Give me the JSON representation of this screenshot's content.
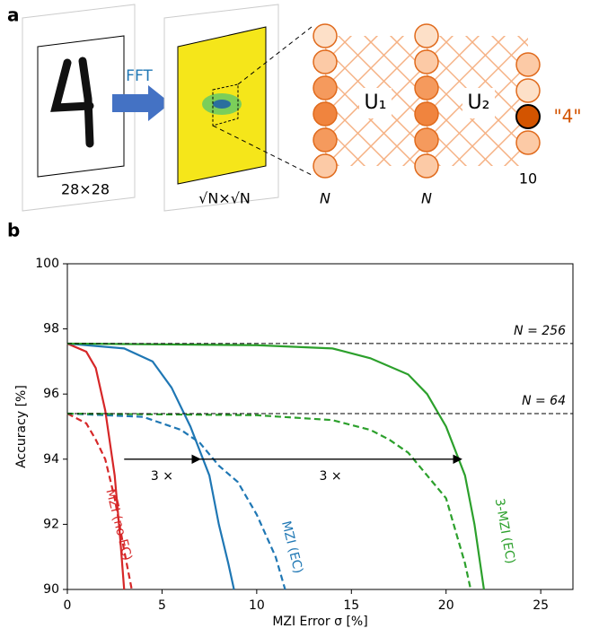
{
  "panel_a": {
    "panel_label": "a",
    "fft_label": "FFT",
    "input_size": "28×28",
    "fft_size": "√N×√N",
    "layer_labels": [
      "N",
      "N",
      "10"
    ],
    "unitary_labels": [
      "U₁",
      "U₂"
    ],
    "output_label": "\"4\""
  },
  "chart_data": {
    "type": "line",
    "panel_label": "b",
    "x_label": "MZI Error σ [%]",
    "y_label": "Accuracy [%]",
    "xlim": [
      0,
      26.7
    ],
    "ylim": [
      90,
      100
    ],
    "xticks": [
      0,
      5,
      10,
      15,
      20,
      25
    ],
    "yticks": [
      90,
      92,
      94,
      96,
      98,
      100
    ],
    "reference_lines": [
      {
        "y": 97.55,
        "label": "N = 256"
      },
      {
        "y": 95.4,
        "label": "N = 64"
      }
    ],
    "annotations": [
      {
        "x1": 3,
        "x2": 7,
        "y": 94,
        "label": "3 ×"
      },
      {
        "x1": 7,
        "x2": 20.8,
        "y": 94,
        "label": "3 ×"
      }
    ],
    "series": [
      {
        "name": "MZI (no EC)",
        "color": "#d62728",
        "lines": [
          {
            "style": "solid",
            "x": [
              0,
              1,
              1.5,
              2,
              2.5,
              2.8,
              3.0
            ],
            "values": [
              97.55,
              97.3,
              96.8,
              95.5,
              93.5,
              91.5,
              90
            ]
          },
          {
            "style": "dashed",
            "x": [
              0,
              1,
              1.5,
              2,
              2.5,
              3,
              3.4
            ],
            "values": [
              95.4,
              95.1,
              94.6,
              94,
              92.8,
              91.2,
              90
            ]
          }
        ]
      },
      {
        "name": "MZI (EC)",
        "color": "#1f77b4",
        "lines": [
          {
            "style": "solid",
            "x": [
              0,
              3,
              4.5,
              5.5,
              6.5,
              7.5,
              8,
              8.5,
              8.8
            ],
            "values": [
              97.55,
              97.4,
              97.0,
              96.2,
              95.0,
              93.5,
              92,
              90.8,
              90
            ]
          },
          {
            "style": "dashed",
            "x": [
              0,
              4,
              6,
              7,
              8,
              9,
              10,
              11,
              11.5
            ],
            "values": [
              95.4,
              95.3,
              94.9,
              94.5,
              93.8,
              93.3,
              92.3,
              91.0,
              90
            ]
          }
        ]
      },
      {
        "name": "3-MZI (EC)",
        "color": "#2ca02c",
        "lines": [
          {
            "style": "solid",
            "x": [
              0,
              10,
              14,
              16,
              18,
              19,
              20,
              21,
              21.5,
              22
            ],
            "values": [
              97.55,
              97.5,
              97.4,
              97.1,
              96.6,
              96.0,
              95.0,
              93.5,
              92.0,
              90
            ]
          },
          {
            "style": "dashed",
            "x": [
              0,
              10,
              14,
              16,
              17,
              18,
              19,
              20,
              20.5,
              21,
              21.3
            ],
            "values": [
              95.4,
              95.35,
              95.2,
              94.9,
              94.6,
              94.2,
              93.5,
              92.8,
              91.8,
              90.8,
              90
            ]
          }
        ]
      }
    ]
  }
}
